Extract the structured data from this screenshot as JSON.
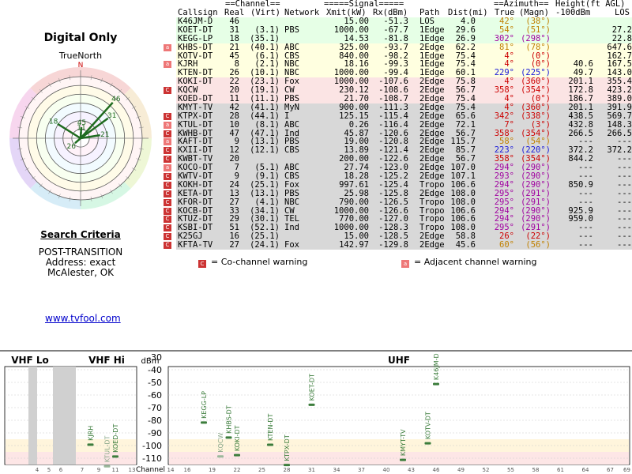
{
  "heading": {
    "title": "Digital Only",
    "north_label": "TrueNorth",
    "north_marker": "N"
  },
  "search": {
    "title": "Search Criteria",
    "mode": "POST-TRANSITION",
    "address": "Address: exact",
    "location": "McAlester, OK"
  },
  "footer_link": "www.tvfool.com",
  "colors": {
    "row_green": "#e6ffe6",
    "row_yellow": "#ffffe0",
    "row_pink": "#fbe4e4",
    "row_gray": "#d8d8d8",
    "az_brown": "#c08000",
    "az_red": "#cc0000",
    "az_blue": "#1a1ad8",
    "az_purple": "#a000a0",
    "polar_line": "#1f6b1f",
    "spectrum_bar": "#3c7d3c"
  },
  "table": {
    "group_headers": {
      "channel": "==Channel==",
      "signal": "=====Signal=====",
      "azimuth": "==Azimuth==",
      "height": "Height(ft AGL)"
    },
    "headers": {
      "callsign": "Callsign",
      "real": "Real",
      "virt": "(Virt)",
      "network": "Network",
      "xmit": "Xmit(kW)",
      "rx": "Rx(dBm)",
      "path": "Path",
      "dist": "Dist(mi)",
      "true": "True",
      "magn": "(Magn)",
      "h100": "-100dBm",
      "los": "LOS"
    },
    "rows": [
      {
        "callsign": "K46JM-D",
        "real": "46",
        "virt": "",
        "network": "",
        "xmit": "15.00",
        "rx": "-51.3",
        "path": "LOS",
        "dist": "4.0",
        "true": "42°",
        "magn": "(38°)",
        "h100": "",
        "los": "",
        "band": "green",
        "az": "brown",
        "warn": ""
      },
      {
        "callsign": "KOET-DT",
        "real": "31",
        "virt": "(3.1)",
        "network": "PBS",
        "xmit": "1000.00",
        "rx": "-67.7",
        "path": "1Edge",
        "dist": "29.6",
        "true": "54°",
        "magn": "(51°)",
        "h100": "",
        "los": "27.2",
        "band": "green",
        "az": "brown",
        "warn": ""
      },
      {
        "callsign": "KEGG-LP",
        "real": "18",
        "virt": "(35.1)",
        "network": "",
        "xmit": "14.53",
        "rx": "-81.8",
        "path": "1Edge",
        "dist": "26.9",
        "true": "302°",
        "magn": "(298°)",
        "h100": "",
        "los": "22.8",
        "band": "green",
        "az": "purple",
        "warn": ""
      },
      {
        "callsign": "KHBS-DT",
        "real": "21",
        "virt": "(40.1)",
        "network": "ABC",
        "xmit": "325.00",
        "rx": "-93.7",
        "path": "2Edge",
        "dist": "62.2",
        "true": "81°",
        "magn": "(78°)",
        "h100": "",
        "los": "647.6",
        "band": "yellow",
        "az": "brown",
        "warn": "a"
      },
      {
        "callsign": "KOTV-DT",
        "real": "45",
        "virt": "(6.1)",
        "network": "CBS",
        "xmit": "840.00",
        "rx": "-98.2",
        "path": "1Edge",
        "dist": "75.4",
        "true": "4°",
        "magn": "(0°)",
        "h100": "",
        "los": "162.7",
        "band": "yellow",
        "az": "red",
        "warn": ""
      },
      {
        "callsign": "KJRH",
        "real": "8",
        "virt": "(2.1)",
        "network": "NBC",
        "xmit": "18.16",
        "rx": "-99.3",
        "path": "1Edge",
        "dist": "75.4",
        "true": "4°",
        "magn": "(0°)",
        "h100": "40.6",
        "los": "167.5",
        "band": "yellow",
        "az": "red",
        "warn": "a"
      },
      {
        "callsign": "KTEN-DT",
        "real": "26",
        "virt": "(10.1)",
        "network": "NBC",
        "xmit": "1000.00",
        "rx": "-99.4",
        "path": "1Edge",
        "dist": "60.1",
        "true": "229°",
        "magn": "(225°)",
        "h100": "49.7",
        "los": "143.0",
        "band": "yellow",
        "az": "blue",
        "warn": ""
      },
      {
        "callsign": "KOKI-DT",
        "real": "22",
        "virt": "(23.1)",
        "network": "Fox",
        "xmit": "1000.00",
        "rx": "-107.6",
        "path": "2Edge",
        "dist": "75.8",
        "true": "4°",
        "magn": "(360°)",
        "h100": "201.1",
        "los": "355.4",
        "band": "pink",
        "az": "red",
        "warn": ""
      },
      {
        "callsign": "KQCW",
        "real": "20",
        "virt": "(19.1)",
        "network": "CW",
        "xmit": "230.12",
        "rx": "-108.6",
        "path": "2Edge",
        "dist": "56.7",
        "true": "358°",
        "magn": "(354°)",
        "h100": "172.8",
        "los": "423.2",
        "band": "pink",
        "az": "red",
        "warn": "c"
      },
      {
        "callsign": "KOED-DT",
        "real": "11",
        "virt": "(11.1)",
        "network": "PBS",
        "xmit": "21.70",
        "rx": "-108.7",
        "path": "2Edge",
        "dist": "75.4",
        "true": "4°",
        "magn": "(0°)",
        "h100": "186.7",
        "los": "389.0",
        "band": "pink",
        "az": "red",
        "warn": ""
      },
      {
        "callsign": "KMYT-TV",
        "real": "42",
        "virt": "(41.1)",
        "network": "MyN",
        "xmit": "900.00",
        "rx": "-111.3",
        "path": "2Edge",
        "dist": "75.4",
        "true": "4°",
        "magn": "(360°)",
        "h100": "201.1",
        "los": "391.9",
        "band": "gray",
        "az": "red",
        "warn": ""
      },
      {
        "callsign": "KTPX-DT",
        "real": "28",
        "virt": "(44.1)",
        "network": "I",
        "xmit": "125.15",
        "rx": "-115.4",
        "path": "2Edge",
        "dist": "65.6",
        "true": "342°",
        "magn": "(338°)",
        "h100": "438.5",
        "los": "569.7",
        "band": "gray",
        "az": "red",
        "warn": "c"
      },
      {
        "callsign": "KTUL-DT",
        "real": "10",
        "virt": "(8.1)",
        "network": "ABC",
        "xmit": "0.26",
        "rx": "-116.4",
        "path": "2Edge",
        "dist": "72.1",
        "true": "7°",
        "magn": "(3°)",
        "h100": "432.8",
        "los": "148.3",
        "band": "gray",
        "az": "red",
        "warn": "a"
      },
      {
        "callsign": "KWHB-DT",
        "real": "47",
        "virt": "(47.1)",
        "network": "Ind",
        "xmit": "45.87",
        "rx": "-120.6",
        "path": "2Edge",
        "dist": "56.7",
        "true": "358°",
        "magn": "(354°)",
        "h100": "266.5",
        "los": "266.5",
        "band": "gray",
        "az": "red",
        "warn": "c"
      },
      {
        "callsign": "KAFT-DT",
        "real": "9",
        "virt": "(13.1)",
        "network": "PBS",
        "xmit": "19.00",
        "rx": "-120.8",
        "path": "2Edge",
        "dist": "115.7",
        "true": "58°",
        "magn": "(54°)",
        "h100": "---",
        "los": "---",
        "band": "gray",
        "az": "brown",
        "warn": "a"
      },
      {
        "callsign": "KXII-DT",
        "real": "12",
        "virt": "(12.1)",
        "network": "CBS",
        "xmit": "13.89",
        "rx": "-121.4",
        "path": "2Edge",
        "dist": "85.7",
        "true": "223°",
        "magn": "(220°)",
        "h100": "372.2",
        "los": "372.2",
        "band": "gray",
        "az": "blue",
        "warn": "c"
      },
      {
        "callsign": "KWBT-TV",
        "real": "20",
        "virt": "",
        "network": "",
        "xmit": "200.00",
        "rx": "-122.6",
        "path": "2Edge",
        "dist": "56.7",
        "true": "358°",
        "magn": "(354°)",
        "h100": "844.2",
        "los": "---",
        "band": "gray",
        "az": "red",
        "warn": "c"
      },
      {
        "callsign": "KOCO-DT",
        "real": "7",
        "virt": "(5.1)",
        "network": "ABC",
        "xmit": "27.74",
        "rx": "-123.0",
        "path": "2Edge",
        "dist": "107.0",
        "true": "294°",
        "magn": "(290°)",
        "h100": "---",
        "los": "---",
        "band": "gray",
        "az": "purple",
        "warn": "a"
      },
      {
        "callsign": "KWTV-DT",
        "real": "9",
        "virt": "(9.1)",
        "network": "CBS",
        "xmit": "18.28",
        "rx": "-125.2",
        "path": "2Edge",
        "dist": "107.1",
        "true": "293°",
        "magn": "(290°)",
        "h100": "---",
        "los": "---",
        "band": "gray",
        "az": "purple",
        "warn": "c"
      },
      {
        "callsign": "KOKH-DT",
        "real": "24",
        "virt": "(25.1)",
        "network": "Fox",
        "xmit": "997.61",
        "rx": "-125.4",
        "path": "Tropo",
        "dist": "106.6",
        "true": "294°",
        "magn": "(290°)",
        "h100": "850.9",
        "los": "---",
        "band": "gray",
        "az": "purple",
        "warn": "c"
      },
      {
        "callsign": "KETA-DT",
        "real": "13",
        "virt": "(13.1)",
        "network": "PBS",
        "xmit": "25.98",
        "rx": "-125.8",
        "path": "2Edge",
        "dist": "108.0",
        "true": "295°",
        "magn": "(291°)",
        "h100": "---",
        "los": "---",
        "band": "gray",
        "az": "purple",
        "warn": "c"
      },
      {
        "callsign": "KFOR-DT",
        "real": "27",
        "virt": "(4.1)",
        "network": "NBC",
        "xmit": "790.00",
        "rx": "-126.5",
        "path": "Tropo",
        "dist": "108.0",
        "true": "295°",
        "magn": "(291°)",
        "h100": "---",
        "los": "---",
        "band": "gray",
        "az": "purple",
        "warn": "c"
      },
      {
        "callsign": "KOCB-DT",
        "real": "33",
        "virt": "(34.1)",
        "network": "CW",
        "xmit": "1000.00",
        "rx": "-126.6",
        "path": "Tropo",
        "dist": "106.6",
        "true": "294°",
        "magn": "(290°)",
        "h100": "925.9",
        "los": "---",
        "band": "gray",
        "az": "purple",
        "warn": "c"
      },
      {
        "callsign": "KTUZ-DT",
        "real": "29",
        "virt": "(30.1)",
        "network": "TEL",
        "xmit": "770.00",
        "rx": "-127.0",
        "path": "Tropo",
        "dist": "106.6",
        "true": "294°",
        "magn": "(290°)",
        "h100": "959.0",
        "los": "---",
        "band": "gray",
        "az": "purple",
        "warn": "c"
      },
      {
        "callsign": "KSBI-DT",
        "real": "51",
        "virt": "(52.1)",
        "network": "Ind",
        "xmit": "1000.00",
        "rx": "-128.3",
        "path": "Tropo",
        "dist": "108.0",
        "true": "295°",
        "magn": "(291°)",
        "h100": "---",
        "los": "---",
        "band": "gray",
        "az": "purple",
        "warn": "c"
      },
      {
        "callsign": "K25GJ",
        "real": "16",
        "virt": "(25.1)",
        "network": "",
        "xmit": "15.00",
        "rx": "-128.5",
        "path": "2Edge",
        "dist": "58.8",
        "true": "26°",
        "magn": "(22°)",
        "h100": "---",
        "los": "---",
        "band": "gray",
        "az": "red",
        "warn": "c"
      },
      {
        "callsign": "KFTA-TV",
        "real": "27",
        "virt": "(24.1)",
        "network": "Fox",
        "xmit": "142.97",
        "rx": "-129.8",
        "path": "2Edge",
        "dist": "45.6",
        "true": "60°",
        "magn": "(56°)",
        "h100": "---",
        "los": "---",
        "band": "gray",
        "az": "brown",
        "warn": "c"
      }
    ]
  },
  "legend": {
    "cochannel_marker": "C",
    "cochannel_text": "= Co-channel warning",
    "adjacent_marker": "a",
    "adjacent_text": "= Adjacent channel warning"
  },
  "polar": {
    "rings": 7,
    "labels": [
      {
        "text": "46",
        "azimuth": 42,
        "r": 0.78
      },
      {
        "text": "31",
        "azimuth": 54,
        "r": 0.55
      },
      {
        "text": "18",
        "azimuth": 302,
        "r": 0.44
      },
      {
        "text": "45",
        "azimuth": 4,
        "r": 0.18
      },
      {
        "text": "11",
        "azimuth": 4,
        "r": 0.1
      },
      {
        "text": "21",
        "azimuth": 81,
        "r": 0.32
      },
      {
        "text": "26",
        "azimuth": 229,
        "r": 0.12
      }
    ]
  },
  "spectrum": {
    "sections": {
      "vhf_lo": "VHF Lo",
      "vhf_hi": "VHF Hi",
      "uhf": "UHF",
      "dbm": "dBm",
      "channel": "Channel"
    },
    "y_ticks": [
      "-30",
      "-40",
      "-50",
      "-60",
      "-70",
      "-80",
      "-90",
      "-100",
      "-110"
    ],
    "vhf_lo_ticks": [
      "4",
      "5",
      "6"
    ],
    "vhf_hi_ticks": [
      "7",
      "9",
      "11",
      "13"
    ],
    "uhf_ticks": [
      "14",
      "16",
      "19",
      "22",
      "25",
      "28",
      "31",
      "34",
      "37",
      "40",
      "43",
      "46",
      "49",
      "52",
      "55",
      "58",
      "61",
      "64",
      "67",
      "69"
    ],
    "bars": [
      {
        "ch": 8,
        "dbm": -99.3,
        "label": "KJRH",
        "dim": false
      },
      {
        "ch": 10,
        "dbm": -116.4,
        "label": "KTUL-DT",
        "dim": true
      },
      {
        "ch": 11,
        "dbm": -108.7,
        "label": "KOED-DT",
        "dim": false
      },
      {
        "ch": 18,
        "dbm": -81.8,
        "label": "KEGG-LP",
        "dim": false
      },
      {
        "ch": 20,
        "dbm": -108.6,
        "label": "KQCW",
        "dim": true
      },
      {
        "ch": 21,
        "dbm": -93.7,
        "label": "KHBS-DT",
        "dim": false
      },
      {
        "ch": 22,
        "dbm": -107.6,
        "label": "KOKI-DT",
        "dim": false
      },
      {
        "ch": 26,
        "dbm": -99.4,
        "label": "KTEN-DT",
        "dim": false
      },
      {
        "ch": 28,
        "dbm": -115.4,
        "label": "KTPX-DT",
        "dim": false
      },
      {
        "ch": 31,
        "dbm": -67.7,
        "label": "KOET-DT",
        "dim": false
      },
      {
        "ch": 42,
        "dbm": -111.3,
        "label": "KMYT-TV",
        "dim": false
      },
      {
        "ch": 45,
        "dbm": -98.2,
        "label": "KOTV-DT",
        "dim": false
      },
      {
        "ch": 46,
        "dbm": -51.3,
        "label": "K46JM-D",
        "dim": false
      }
    ]
  }
}
